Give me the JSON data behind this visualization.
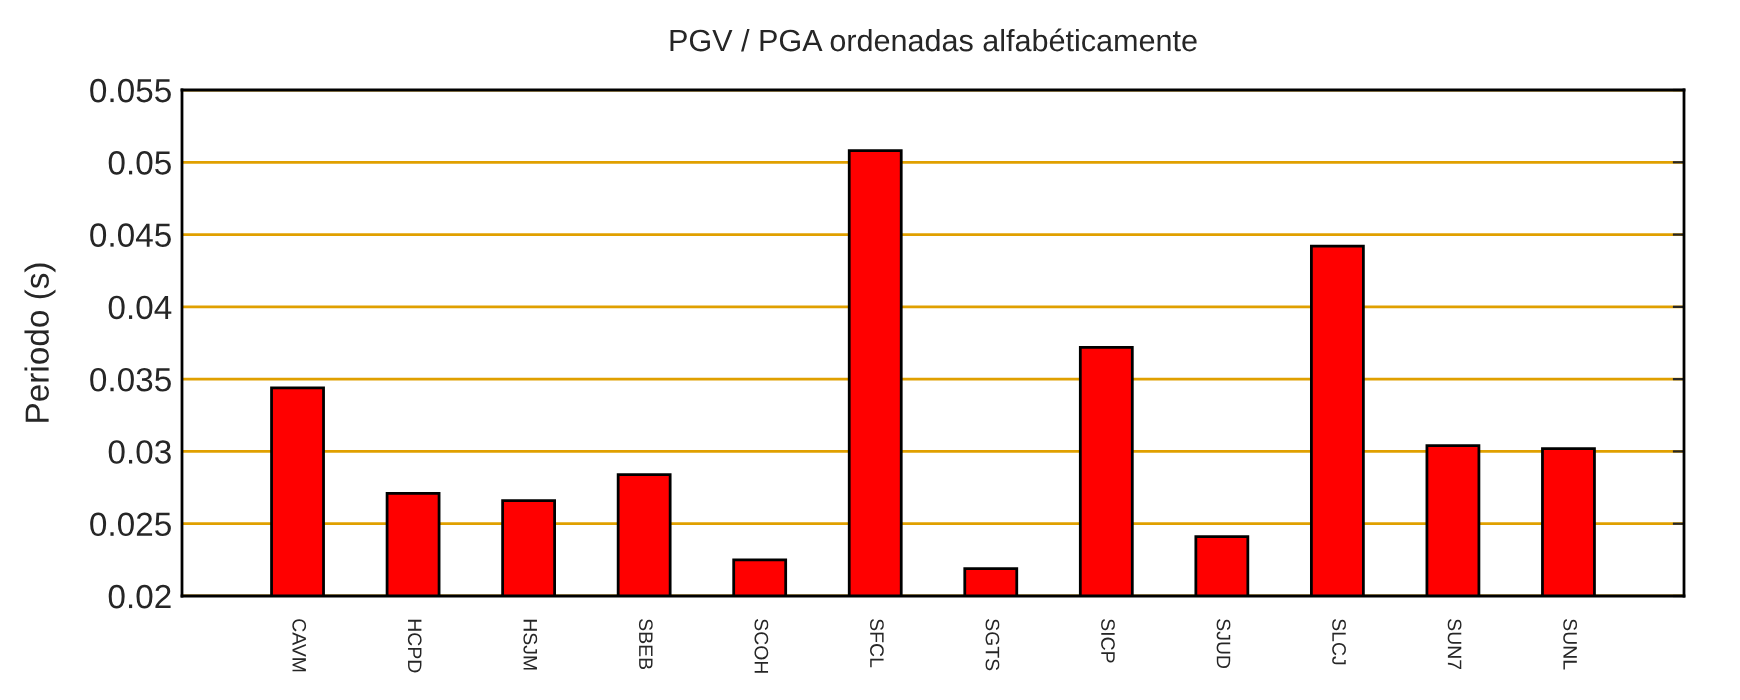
{
  "chart_data": {
    "type": "bar",
    "title": "PGV / PGA ordenadas alfabéticamente",
    "ylabel": "Periodo (s)",
    "categories": [
      "CAVM",
      "HCPD",
      "HSJM",
      "SBEB",
      "SCOH",
      "SFCL",
      "SGTS",
      "SICP",
      "SJUD",
      "SLCJ",
      "SUN7",
      "SUNL"
    ],
    "values": [
      0.0344,
      0.0271,
      0.0266,
      0.0284,
      0.0225,
      0.0508,
      0.0219,
      0.0372,
      0.0241,
      0.0442,
      0.0304,
      0.0302
    ],
    "color": "#ff0000",
    "ylim": [
      0.02,
      0.055
    ],
    "yticks": [
      0.02,
      0.025,
      0.03,
      0.035,
      0.04,
      0.045,
      0.05,
      0.055
    ],
    "grid": "y",
    "legend": false
  }
}
